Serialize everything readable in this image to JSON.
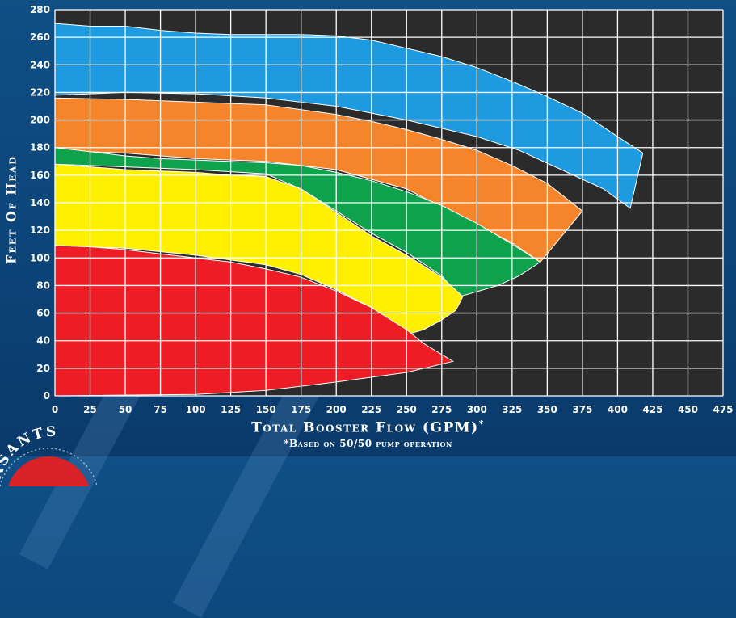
{
  "chart_data": {
    "type": "area",
    "xlabel": "Total Booster Flow (GPM)",
    "xlabel_mark": "*",
    "footnote": "*Based on 50/50 pump operation",
    "ylabel": "Feet Of Head",
    "xlim": [
      0,
      475
    ],
    "ylim": [
      0,
      280
    ],
    "xticks": [
      0,
      25,
      50,
      75,
      100,
      125,
      150,
      175,
      200,
      225,
      250,
      275,
      300,
      325,
      350,
      375,
      400,
      425,
      450,
      475
    ],
    "yticks": [
      0,
      20,
      40,
      60,
      80,
      100,
      120,
      140,
      160,
      180,
      200,
      220,
      240,
      260,
      280
    ],
    "grid": true,
    "series": [
      {
        "color": "#1e9be0",
        "upper": [
          [
            0,
            270
          ],
          [
            25,
            268
          ],
          [
            50,
            268
          ],
          [
            75,
            265
          ],
          [
            100,
            263
          ],
          [
            125,
            262
          ],
          [
            150,
            262
          ],
          [
            175,
            262
          ],
          [
            200,
            261
          ],
          [
            225,
            258
          ],
          [
            250,
            252
          ],
          [
            275,
            246
          ],
          [
            300,
            238
          ],
          [
            325,
            228
          ],
          [
            350,
            217
          ],
          [
            375,
            205
          ],
          [
            400,
            188
          ],
          [
            418,
            176
          ]
        ],
        "lower": [
          [
            0,
            218
          ],
          [
            50,
            220
          ],
          [
            100,
            219
          ],
          [
            150,
            216
          ],
          [
            200,
            210
          ],
          [
            250,
            200
          ],
          [
            300,
            188
          ],
          [
            330,
            178
          ],
          [
            360,
            164
          ],
          [
            390,
            150
          ],
          [
            409,
            136
          ],
          [
            418,
            176
          ]
        ]
      },
      {
        "color": "#f5842a",
        "upper": [
          [
            0,
            216
          ],
          [
            50,
            215
          ],
          [
            100,
            213
          ],
          [
            150,
            211
          ],
          [
            200,
            204
          ],
          [
            225,
            199
          ],
          [
            250,
            193
          ],
          [
            275,
            186
          ],
          [
            300,
            178
          ],
          [
            325,
            167
          ],
          [
            350,
            154
          ],
          [
            375,
            134
          ]
        ],
        "lower": [
          [
            0,
            178
          ],
          [
            50,
            176
          ],
          [
            100,
            172
          ],
          [
            150,
            170
          ],
          [
            200,
            164
          ],
          [
            250,
            150
          ],
          [
            275,
            137
          ],
          [
            300,
            124
          ],
          [
            325,
            111
          ],
          [
            345,
            97
          ],
          [
            375,
            134
          ]
        ]
      },
      {
        "color": "#0ea24c",
        "upper": [
          [
            0,
            180
          ],
          [
            25,
            177
          ],
          [
            50,
            174
          ],
          [
            75,
            172
          ],
          [
            100,
            171
          ],
          [
            150,
            169
          ],
          [
            175,
            167
          ],
          [
            200,
            162
          ],
          [
            225,
            156
          ],
          [
            250,
            148
          ],
          [
            275,
            138
          ],
          [
            300,
            125
          ],
          [
            325,
            110
          ],
          [
            345,
            97
          ]
        ],
        "lower": [
          [
            0,
            168
          ],
          [
            50,
            166
          ],
          [
            100,
            164
          ],
          [
            150,
            161
          ],
          [
            175,
            150
          ],
          [
            200,
            134
          ],
          [
            225,
            118
          ],
          [
            250,
            104
          ],
          [
            275,
            87
          ],
          [
            288,
            72
          ],
          [
            315,
            80
          ],
          [
            330,
            87
          ],
          [
            345,
            97
          ]
        ]
      },
      {
        "color": "#fff000",
        "upper": [
          [
            0,
            168
          ],
          [
            25,
            166
          ],
          [
            50,
            164
          ],
          [
            75,
            163
          ],
          [
            100,
            162
          ],
          [
            125,
            160
          ],
          [
            150,
            159
          ],
          [
            175,
            150
          ],
          [
            200,
            133
          ],
          [
            225,
            116
          ],
          [
            250,
            102
          ],
          [
            275,
            86
          ],
          [
            290,
            72
          ],
          [
            285,
            62
          ],
          [
            275,
            55
          ],
          [
            262,
            48
          ],
          [
            252,
            45
          ]
        ],
        "lower": [
          [
            0,
            109
          ],
          [
            50,
            107
          ],
          [
            100,
            102
          ],
          [
            150,
            95
          ],
          [
            175,
            88
          ],
          [
            200,
            77
          ],
          [
            225,
            64
          ],
          [
            240,
            54
          ],
          [
            252,
            45
          ]
        ]
      },
      {
        "color": "#ee1c24",
        "upper": [
          [
            0,
            109
          ],
          [
            25,
            108
          ],
          [
            50,
            106
          ],
          [
            75,
            103
          ],
          [
            100,
            100
          ],
          [
            125,
            97
          ],
          [
            150,
            92
          ],
          [
            175,
            86
          ],
          [
            200,
            76
          ],
          [
            225,
            64
          ],
          [
            250,
            48
          ],
          [
            262,
            38
          ],
          [
            275,
            30
          ],
          [
            283,
            25
          ]
        ],
        "lower": [
          [
            0,
            0
          ],
          [
            100,
            1
          ],
          [
            150,
            4
          ],
          [
            200,
            10
          ],
          [
            250,
            17
          ],
          [
            283,
            25
          ]
        ]
      }
    ]
  },
  "logo": {
    "text": "ASANTS",
    "colors": [
      "#ffffff",
      "#d82228"
    ]
  }
}
